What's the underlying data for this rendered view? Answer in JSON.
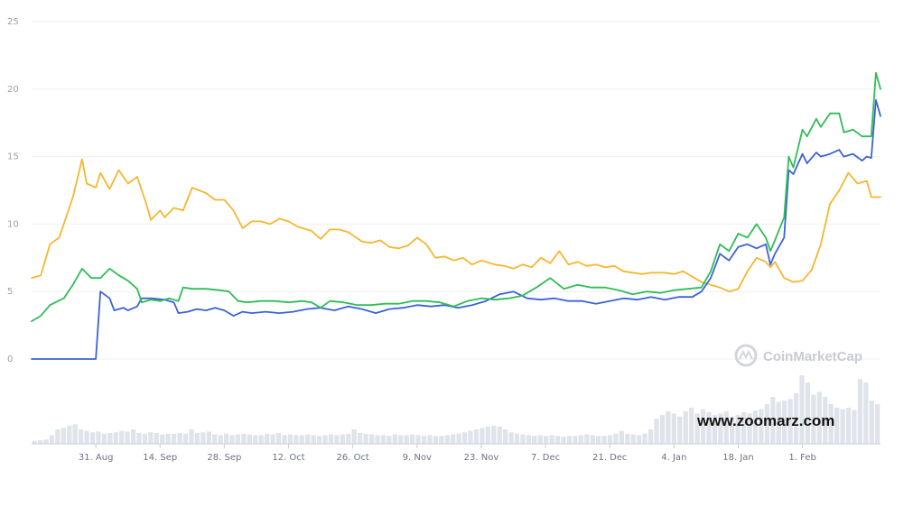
{
  "chart_data": {
    "type": "line",
    "title": "",
    "xlabel": "",
    "ylabel": "",
    "ylim": [
      0,
      25
    ],
    "yticks": [
      "0",
      "5",
      "10",
      "15",
      "20",
      "25"
    ],
    "xticks": [
      "31. Aug",
      "14. Sep",
      "28. Sep",
      "12. Oct",
      "26. Oct",
      "9. Nov",
      "23. Nov",
      "7. Dec",
      "21. Dec",
      "4. Jan",
      "18. Jan",
      "1. Feb"
    ],
    "x_range_days": [
      -14,
      171
    ],
    "grid": true,
    "legend": "none",
    "series": [
      {
        "color": "#f5b731",
        "points": [
          [
            -14,
            6.0
          ],
          [
            -12,
            6.2
          ],
          [
            -10,
            8.5
          ],
          [
            -8,
            9.0
          ],
          [
            -5,
            12.0
          ],
          [
            -3,
            14.8
          ],
          [
            -2,
            13.0
          ],
          [
            0,
            12.7
          ],
          [
            1,
            13.8
          ],
          [
            3,
            12.6
          ],
          [
            5,
            14.0
          ],
          [
            7,
            13.0
          ],
          [
            9,
            13.5
          ],
          [
            11,
            11.5
          ],
          [
            12,
            10.3
          ],
          [
            14,
            11.0
          ],
          [
            15,
            10.5
          ],
          [
            17,
            11.2
          ],
          [
            19,
            11.0
          ],
          [
            21,
            12.7
          ],
          [
            24,
            12.3
          ],
          [
            26,
            11.8
          ],
          [
            28,
            11.8
          ],
          [
            30,
            11.0
          ],
          [
            32,
            9.7
          ],
          [
            34,
            10.2
          ],
          [
            36,
            10.2
          ],
          [
            38,
            10.0
          ],
          [
            40,
            10.4
          ],
          [
            42,
            10.2
          ],
          [
            44,
            9.8
          ],
          [
            47,
            9.5
          ],
          [
            49,
            8.9
          ],
          [
            51,
            9.6
          ],
          [
            53,
            9.6
          ],
          [
            55,
            9.4
          ],
          [
            58,
            8.7
          ],
          [
            60,
            8.6
          ],
          [
            62,
            8.8
          ],
          [
            64,
            8.3
          ],
          [
            66,
            8.2
          ],
          [
            68,
            8.4
          ],
          [
            70,
            9.0
          ],
          [
            72,
            8.5
          ],
          [
            74,
            7.5
          ],
          [
            76,
            7.6
          ],
          [
            78,
            7.3
          ],
          [
            80,
            7.5
          ],
          [
            82,
            7.0
          ],
          [
            84,
            7.3
          ],
          [
            87,
            7.0
          ],
          [
            89,
            6.9
          ],
          [
            91,
            6.7
          ],
          [
            93,
            7.0
          ],
          [
            95,
            6.8
          ],
          [
            97,
            7.5
          ],
          [
            99,
            7.1
          ],
          [
            101,
            8.0
          ],
          [
            103,
            7.0
          ],
          [
            105,
            7.2
          ],
          [
            107,
            6.9
          ],
          [
            109,
            7.0
          ],
          [
            111,
            6.8
          ],
          [
            113,
            6.9
          ],
          [
            115,
            6.5
          ],
          [
            117,
            6.4
          ],
          [
            119,
            6.3
          ],
          [
            121,
            6.4
          ],
          [
            124,
            6.4
          ],
          [
            126,
            6.3
          ],
          [
            128,
            6.5
          ],
          [
            130,
            6.1
          ],
          [
            132,
            5.7
          ],
          [
            134,
            5.5
          ],
          [
            136,
            5.3
          ],
          [
            138,
            5.0
          ],
          [
            140,
            5.2
          ],
          [
            142,
            6.5
          ],
          [
            144,
            7.5
          ],
          [
            146,
            7.2
          ],
          [
            147,
            6.8
          ],
          [
            148,
            7.2
          ],
          [
            150,
            6.0
          ],
          [
            152,
            5.7
          ],
          [
            154,
            5.8
          ],
          [
            156,
            6.6
          ],
          [
            158,
            8.5
          ],
          [
            160,
            11.5
          ],
          [
            162,
            12.5
          ],
          [
            164,
            13.8
          ],
          [
            166,
            13.0
          ],
          [
            168,
            13.2
          ],
          [
            169,
            12.0
          ],
          [
            171,
            12.0
          ]
        ]
      },
      {
        "color": "#3d62d6",
        "points": [
          [
            -14,
            0.0
          ],
          [
            0,
            0.0
          ],
          [
            1,
            5.0
          ],
          [
            3,
            4.5
          ],
          [
            4,
            3.6
          ],
          [
            6,
            3.8
          ],
          [
            7,
            3.6
          ],
          [
            9,
            3.9
          ],
          [
            10,
            4.5
          ],
          [
            12,
            4.5
          ],
          [
            15,
            4.4
          ],
          [
            17,
            4.2
          ],
          [
            18,
            3.4
          ],
          [
            20,
            3.5
          ],
          [
            22,
            3.7
          ],
          [
            24,
            3.6
          ],
          [
            26,
            3.8
          ],
          [
            28,
            3.6
          ],
          [
            30,
            3.2
          ],
          [
            32,
            3.5
          ],
          [
            34,
            3.4
          ],
          [
            37,
            3.5
          ],
          [
            40,
            3.4
          ],
          [
            43,
            3.5
          ],
          [
            46,
            3.7
          ],
          [
            49,
            3.8
          ],
          [
            52,
            3.6
          ],
          [
            55,
            3.9
          ],
          [
            58,
            3.7
          ],
          [
            61,
            3.4
          ],
          [
            64,
            3.7
          ],
          [
            67,
            3.8
          ],
          [
            70,
            4.0
          ],
          [
            73,
            3.9
          ],
          [
            76,
            4.0
          ],
          [
            79,
            3.8
          ],
          [
            82,
            4.0
          ],
          [
            85,
            4.3
          ],
          [
            88,
            4.8
          ],
          [
            91,
            5.0
          ],
          [
            94,
            4.5
          ],
          [
            97,
            4.4
          ],
          [
            100,
            4.5
          ],
          [
            103,
            4.3
          ],
          [
            106,
            4.3
          ],
          [
            109,
            4.1
          ],
          [
            112,
            4.3
          ],
          [
            115,
            4.5
          ],
          [
            118,
            4.4
          ],
          [
            121,
            4.6
          ],
          [
            124,
            4.4
          ],
          [
            127,
            4.6
          ],
          [
            130,
            4.6
          ],
          [
            132,
            5.0
          ],
          [
            134,
            6.0
          ],
          [
            136,
            7.8
          ],
          [
            138,
            7.3
          ],
          [
            140,
            8.3
          ],
          [
            142,
            8.5
          ],
          [
            144,
            8.2
          ],
          [
            146,
            8.5
          ],
          [
            147,
            7.0
          ],
          [
            148,
            7.8
          ],
          [
            150,
            9.0
          ],
          [
            151,
            14.0
          ],
          [
            152,
            13.7
          ],
          [
            154,
            15.2
          ],
          [
            155,
            14.5
          ],
          [
            157,
            15.3
          ],
          [
            158,
            15.0
          ],
          [
            160,
            15.2
          ],
          [
            162,
            15.5
          ],
          [
            163,
            15.0
          ],
          [
            165,
            15.2
          ],
          [
            167,
            14.7
          ],
          [
            168,
            15.0
          ],
          [
            169,
            14.9
          ],
          [
            170,
            19.2
          ],
          [
            171,
            18.0
          ]
        ]
      },
      {
        "color": "#2fbd57",
        "points": [
          [
            -14,
            2.8
          ],
          [
            -12,
            3.2
          ],
          [
            -10,
            4.0
          ],
          [
            -7,
            4.5
          ],
          [
            -5,
            5.5
          ],
          [
            -3,
            6.7
          ],
          [
            -1,
            6.0
          ],
          [
            1,
            6.0
          ],
          [
            3,
            6.7
          ],
          [
            5,
            6.2
          ],
          [
            7,
            5.8
          ],
          [
            9,
            5.2
          ],
          [
            10,
            4.2
          ],
          [
            12,
            4.4
          ],
          [
            14,
            4.3
          ],
          [
            16,
            4.5
          ],
          [
            18,
            4.3
          ],
          [
            19,
            5.3
          ],
          [
            21,
            5.2
          ],
          [
            24,
            5.2
          ],
          [
            27,
            5.1
          ],
          [
            29,
            5.0
          ],
          [
            31,
            4.3
          ],
          [
            33,
            4.2
          ],
          [
            36,
            4.3
          ],
          [
            39,
            4.3
          ],
          [
            42,
            4.2
          ],
          [
            45,
            4.3
          ],
          [
            47,
            4.2
          ],
          [
            49,
            3.8
          ],
          [
            51,
            4.3
          ],
          [
            54,
            4.2
          ],
          [
            57,
            4.0
          ],
          [
            60,
            4.0
          ],
          [
            63,
            4.1
          ],
          [
            66,
            4.1
          ],
          [
            69,
            4.3
          ],
          [
            72,
            4.3
          ],
          [
            75,
            4.2
          ],
          [
            78,
            3.9
          ],
          [
            81,
            4.3
          ],
          [
            84,
            4.5
          ],
          [
            87,
            4.4
          ],
          [
            90,
            4.5
          ],
          [
            93,
            4.7
          ],
          [
            96,
            5.3
          ],
          [
            99,
            6.0
          ],
          [
            102,
            5.2
          ],
          [
            105,
            5.5
          ],
          [
            108,
            5.3
          ],
          [
            111,
            5.3
          ],
          [
            114,
            5.1
          ],
          [
            117,
            4.8
          ],
          [
            120,
            5.0
          ],
          [
            123,
            4.9
          ],
          [
            126,
            5.1
          ],
          [
            129,
            5.2
          ],
          [
            132,
            5.3
          ],
          [
            134,
            6.5
          ],
          [
            136,
            8.5
          ],
          [
            138,
            8.0
          ],
          [
            140,
            9.3
          ],
          [
            142,
            9.0
          ],
          [
            144,
            10.0
          ],
          [
            146,
            9.0
          ],
          [
            147,
            8.0
          ],
          [
            148,
            8.8
          ],
          [
            150,
            10.5
          ],
          [
            151,
            15.0
          ],
          [
            152,
            14.2
          ],
          [
            154,
            17.0
          ],
          [
            155,
            16.5
          ],
          [
            157,
            17.8
          ],
          [
            158,
            17.2
          ],
          [
            160,
            18.2
          ],
          [
            162,
            18.2
          ],
          [
            163,
            16.8
          ],
          [
            165,
            17.0
          ],
          [
            167,
            16.5
          ],
          [
            168,
            16.5
          ],
          [
            169,
            16.5
          ],
          [
            170,
            21.2
          ],
          [
            171,
            20.0
          ]
        ]
      }
    ],
    "volume": {
      "color": "#dfe3ea",
      "values": [
        0.04,
        0.05,
        0.06,
        0.12,
        0.2,
        0.22,
        0.25,
        0.27,
        0.2,
        0.18,
        0.16,
        0.17,
        0.14,
        0.15,
        0.16,
        0.18,
        0.17,
        0.2,
        0.15,
        0.14,
        0.16,
        0.15,
        0.13,
        0.14,
        0.14,
        0.15,
        0.14,
        0.2,
        0.15,
        0.16,
        0.17,
        0.13,
        0.12,
        0.14,
        0.12,
        0.13,
        0.14,
        0.13,
        0.12,
        0.12,
        0.14,
        0.13,
        0.15,
        0.12,
        0.13,
        0.12,
        0.12,
        0.13,
        0.12,
        0.11,
        0.12,
        0.13,
        0.12,
        0.13,
        0.14,
        0.2,
        0.15,
        0.14,
        0.13,
        0.12,
        0.12,
        0.11,
        0.13,
        0.12,
        0.12,
        0.13,
        0.12,
        0.11,
        0.12,
        0.11,
        0.11,
        0.12,
        0.13,
        0.14,
        0.16,
        0.18,
        0.2,
        0.22,
        0.24,
        0.25,
        0.24,
        0.2,
        0.16,
        0.14,
        0.13,
        0.12,
        0.11,
        0.12,
        0.11,
        0.12,
        0.11,
        0.1,
        0.11,
        0.11,
        0.12,
        0.13,
        0.12,
        0.11,
        0.11,
        0.12,
        0.14,
        0.18,
        0.14,
        0.13,
        0.12,
        0.14,
        0.2,
        0.35,
        0.4,
        0.45,
        0.42,
        0.38,
        0.45,
        0.5,
        0.42,
        0.48,
        0.44,
        0.4,
        0.42,
        0.45,
        0.38,
        0.4,
        0.44,
        0.42,
        0.46,
        0.48,
        0.55,
        0.65,
        0.58,
        0.6,
        0.62,
        0.7,
        0.95,
        0.85,
        0.68,
        0.72,
        0.65,
        0.55,
        0.5,
        0.48,
        0.5,
        0.47,
        0.9,
        0.85,
        0.6,
        0.55
      ]
    }
  },
  "watermarks": {
    "coinmarketcap": "CoinMarketCap",
    "site": "www.zoomarz.com"
  }
}
